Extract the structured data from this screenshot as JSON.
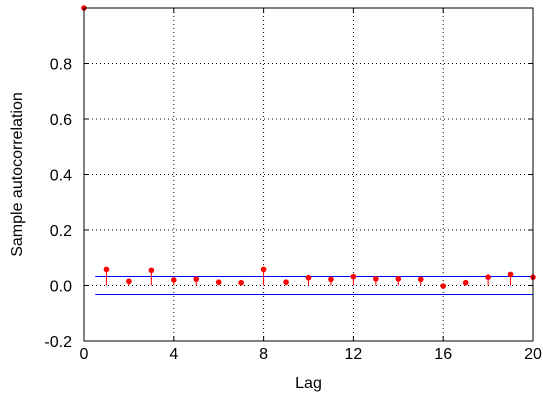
{
  "chart_data": {
    "type": "stem",
    "xlabel": "Lag",
    "ylabel": "Sample autocorrelation",
    "xlim": [
      0,
      20
    ],
    "ylim": [
      -0.2,
      1.0
    ],
    "x_ticks": [
      0,
      4,
      8,
      12,
      16,
      20
    ],
    "y_ticks": [
      -0.2,
      0.0,
      0.2,
      0.4,
      0.6,
      0.8
    ],
    "x_tick_labels": [
      "0",
      "4",
      "8",
      "12",
      "16",
      "20"
    ],
    "y_tick_labels": [
      "-0.2",
      "0.0",
      "0.2",
      "0.4",
      "0.6",
      "0.8"
    ],
    "grid": true,
    "x": [
      0,
      1,
      2,
      3,
      4,
      5,
      6,
      7,
      8,
      9,
      10,
      11,
      12,
      13,
      14,
      15,
      16,
      17,
      18,
      19,
      20
    ],
    "values": [
      1.0,
      0.058,
      0.015,
      0.055,
      0.02,
      0.023,
      0.012,
      0.01,
      0.058,
      0.012,
      0.028,
      0.022,
      0.032,
      0.024,
      0.024,
      0.022,
      -0.002,
      0.01,
      0.03,
      0.04,
      0.03
    ],
    "confidence_bounds": [
      0.0325,
      -0.0325
    ],
    "colors": {
      "stems": "#ff0000",
      "markers": "#ff0000",
      "bounds": "#0000ff",
      "grid": "#000000",
      "frame": "#000000"
    }
  }
}
